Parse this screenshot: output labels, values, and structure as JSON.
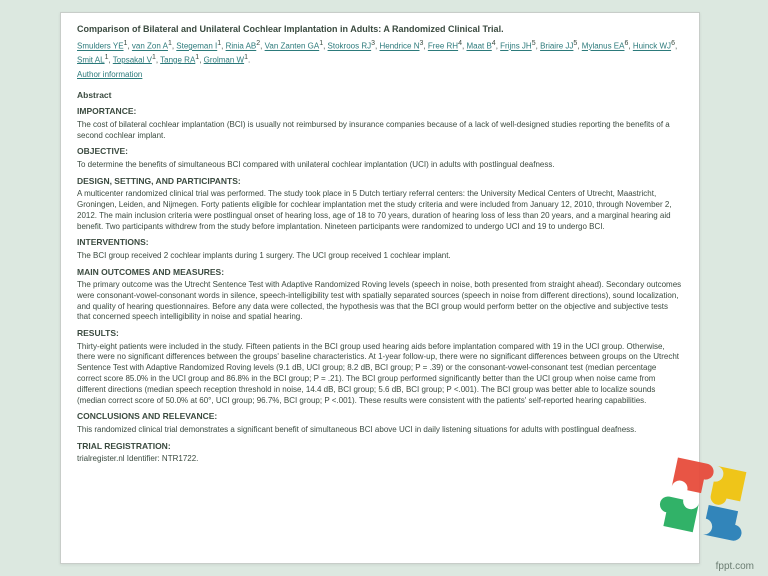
{
  "title": "Comparison of Bilateral and Unilateral Cochlear Implantation in Adults: A Randomized Clinical Trial.",
  "authors": [
    {
      "name": "Smulders YE",
      "sup": "1"
    },
    {
      "name": "van Zon A",
      "sup": "1"
    },
    {
      "name": "Stegeman I",
      "sup": "1"
    },
    {
      "name": "Rinia AB",
      "sup": "2"
    },
    {
      "name": "Van Zanten GA",
      "sup": "1"
    },
    {
      "name": "Stokroos RJ",
      "sup": "3"
    },
    {
      "name": "Hendrice N",
      "sup": "3"
    },
    {
      "name": "Free RH",
      "sup": "4"
    },
    {
      "name": "Maat B",
      "sup": "4"
    },
    {
      "name": "Frijns JH",
      "sup": "5"
    },
    {
      "name": "Briaire JJ",
      "sup": "5"
    },
    {
      "name": "Mylanus EA",
      "sup": "6"
    },
    {
      "name": "Huinck WJ",
      "sup": "6"
    },
    {
      "name": "Smit AL",
      "sup": "1"
    },
    {
      "name": "Topsakal V",
      "sup": "1"
    },
    {
      "name": "Tange RA",
      "sup": "1"
    },
    {
      "name": "Grolman W",
      "sup": "1"
    }
  ],
  "author_info_label": "Author information",
  "sections": {
    "abstract": "Abstract",
    "importance_h": "IMPORTANCE:",
    "importance": "The cost of bilateral cochlear implantation (BCI) is usually not reimbursed by insurance companies because of a lack of well-designed studies reporting the benefits of a second cochlear implant.",
    "objective_h": "OBJECTIVE:",
    "objective": "To determine the benefits of simultaneous BCI compared with unilateral cochlear implantation (UCI) in adults with postlingual deafness.",
    "design_h": "DESIGN, SETTING, AND PARTICIPANTS:",
    "design": "A multicenter randomized clinical trial was performed. The study took place in 5 Dutch tertiary referral centers: the University Medical Centers of Utrecht, Maastricht, Groningen, Leiden, and Nijmegen. Forty patients eligible for cochlear implantation met the study criteria and were included from January 12, 2010, through November 2, 2012. The main inclusion criteria were postlingual onset of hearing loss, age of 18 to 70 years, duration of hearing loss of less than 20 years, and a marginal hearing aid benefit. Two participants withdrew from the study before implantation. Nineteen participants were randomized to undergo UCI and 19 to undergo BCI.",
    "interventions_h": "INTERVENTIONS:",
    "interventions": "The BCI group received 2 cochlear implants during 1 surgery. The UCI group received 1 cochlear implant.",
    "main_h": "MAIN OUTCOMES AND MEASURES:",
    "main": "The primary outcome was the Utrecht Sentence Test with Adaptive Randomized Roving levels (speech in noise, both presented from straight ahead). Secondary outcomes were consonant-vowel-consonant words in silence, speech-intelligibility test with spatially separated sources (speech in noise from different directions), sound localization, and quality of hearing questionnaires. Before any data were collected, the hypothesis was that the BCI group would perform better on the objective and subjective tests that concerned speech intelligibility in noise and spatial hearing.",
    "results_h": "RESULTS:",
    "results": "Thirty-eight patients were included in the study. Fifteen patients in the BCI group used hearing aids before implantation compared with 19 in the UCI group. Otherwise, there were no significant differences between the groups' baseline characteristics. At 1-year follow-up, there were no significant differences between groups on the Utrecht Sentence Test with Adaptive Randomized Roving levels (9.1 dB, UCI group; 8.2 dB, BCI group; P = .39) or the consonant-vowel-consonant test (median percentage correct score 85.0% in the UCI group and 86.8% in the BCI group; P = .21). The BCI group performed significantly better than the UCI group when noise came from different directions (median speech reception threshold in noise, 14.4 dB, BCI group; 5.6 dB, BCI group; P <.001). The BCI group was better able to localize sounds (median correct score of 50.0% at 60°, UCI group; 96.7%, BCI group; P <.001). These results were consistent with the patients' self-reported hearing capabilities.",
    "concl_h": "CONCLUSIONS AND RELEVANCE:",
    "concl": "This randomized clinical trial demonstrates a significant benefit of simultaneous BCI above UCI in daily listening situations for adults with postlingual deafness.",
    "trial_h": "TRIAL REGISTRATION:",
    "trial": "trialregister.nl Identifier: NTR1722."
  },
  "footer": "fppt.com",
  "colors": {
    "bg": "#dce8e0",
    "card": "#ffffff",
    "text": "#3a4a3f",
    "link": "#2c7a7b",
    "puzzle": [
      "#e74c3c",
      "#f1c40f",
      "#27ae60",
      "#2980b9"
    ]
  }
}
